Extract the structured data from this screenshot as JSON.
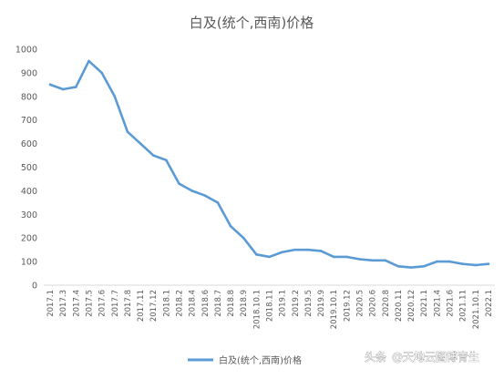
{
  "chart_data": {
    "type": "line",
    "title": "白及(统个,西南)价格",
    "xlabel": "",
    "ylabel": "",
    "ylim": [
      0,
      1000
    ],
    "yticks": [
      0,
      100,
      200,
      300,
      400,
      500,
      600,
      700,
      800,
      900,
      1000
    ],
    "grid": false,
    "legend_position": "bottom",
    "line_color": "#5b9bd5",
    "categories": [
      "2017.1",
      "2017.3",
      "2017.4",
      "2017.5",
      "2017.6",
      "2017.7",
      "2017.8",
      "2017.11",
      "2017.12",
      "2018.1",
      "2018.2",
      "2018.4",
      "2018.6",
      "2018.7",
      "2018.8",
      "2018.9",
      "2018.10.1",
      "2018.11",
      "2019.1",
      "2019.2",
      "2019.5",
      "2019.9",
      "2019.10.1",
      "2019.12",
      "2020.5",
      "2020.6",
      "2020.8",
      "2020.11",
      "2020.12",
      "2021.1",
      "2021.4",
      "2021.6",
      "2021.11",
      "2021.10.1",
      "2022.1"
    ],
    "series": [
      {
        "name": "白及(统个,西南)价格",
        "values": [
          850,
          830,
          840,
          950,
          900,
          800,
          650,
          600,
          550,
          530,
          430,
          400,
          380,
          350,
          250,
          200,
          130,
          120,
          140,
          150,
          150,
          145,
          120,
          120,
          110,
          105,
          105,
          80,
          75,
          80,
          100,
          100,
          90,
          85,
          90
        ]
      }
    ]
  },
  "watermark": {
    "prefix": "头条",
    "handle": "@天地云图博青生"
  }
}
